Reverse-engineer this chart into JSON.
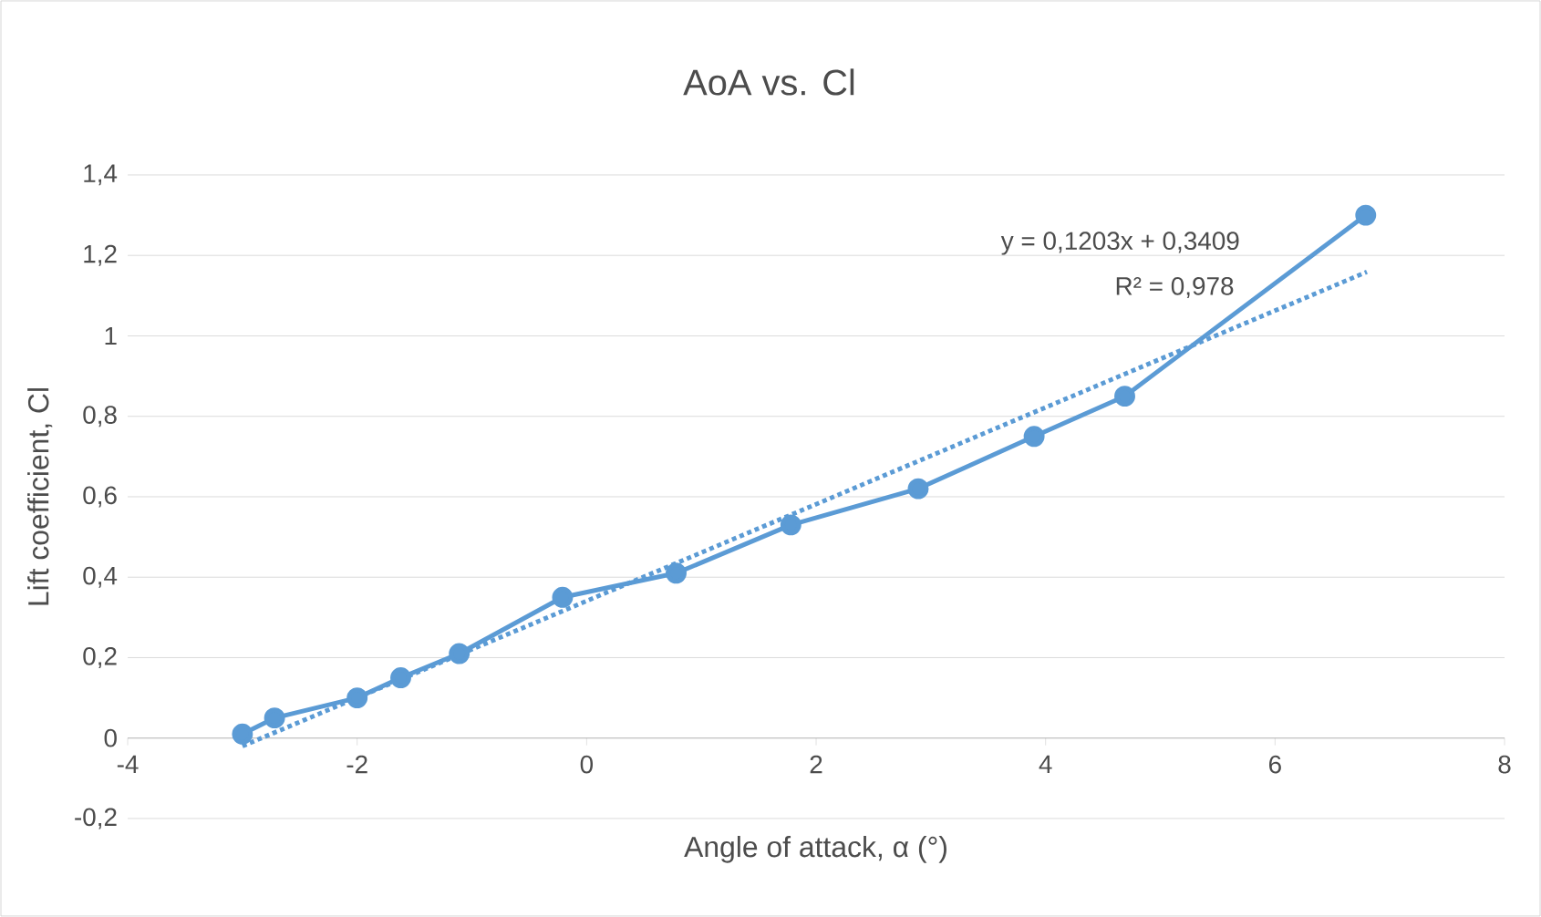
{
  "chart_data": {
    "type": "line",
    "title": "AoA vs. Cl",
    "xlabel": "Angle of attack, α (°)",
    "ylabel": "Lift coefficient, Cl",
    "xlim": [
      -4,
      8
    ],
    "xticks": [
      -4,
      -2,
      0,
      2,
      4,
      6,
      8
    ],
    "ylim": [
      -0.2,
      1.4
    ],
    "yticks": [
      {
        "value": -0.2,
        "label": "-0,2"
      },
      0,
      {
        "value": 0.2,
        "label": "0,2"
      },
      {
        "value": 0.4,
        "label": "0,4"
      },
      {
        "value": 0.6,
        "label": "0,6"
      },
      {
        "value": 0.8,
        "label": "0,8"
      },
      1,
      {
        "value": 1.2,
        "label": "1,2"
      },
      {
        "value": 1.4,
        "label": "1,4"
      }
    ],
    "grid": "y",
    "marker": "circle",
    "line_style": "solid",
    "series": [
      {
        "color": "#5b9bd5",
        "x": [
          -3.0,
          -2.72,
          -2.0,
          -1.62,
          -1.11,
          -0.21,
          0.78,
          1.78,
          2.89,
          3.9,
          4.69,
          6.79
        ],
        "values": [
          0.01,
          0.05,
          0.1,
          0.15,
          0.21,
          0.35,
          0.41,
          0.53,
          0.62,
          0.75,
          0.85,
          1.3
        ]
      },
      {
        "type": "line",
        "color": "#5b9bd5",
        "marker": "none",
        "line_style": "dotted",
        "x": [
          -3.0,
          6.8
        ],
        "values": [
          -0.02,
          1.159
        ]
      }
    ],
    "annotations": [
      "y = 0,1203x + 0,3409",
      "R² = 0,978"
    ]
  }
}
